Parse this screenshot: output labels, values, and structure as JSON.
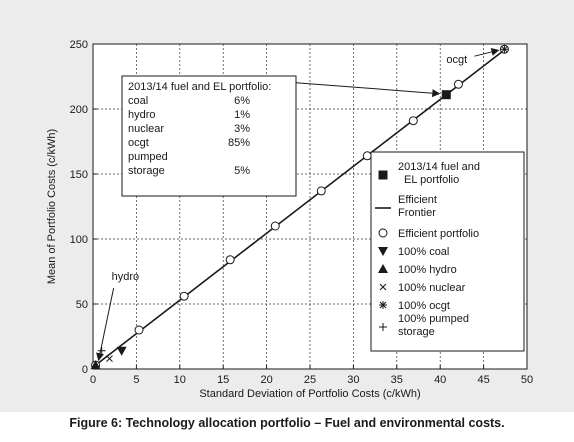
{
  "caption": "Figure 6: Technology allocation portfolio – Fuel and environmental costs.",
  "chart_data": {
    "type": "line",
    "title": "",
    "xlabel": "Standard Deviation of Portfolio Costs (c/kWh)",
    "ylabel": "Mean of Portfolio Costs (c/kWh)",
    "xlim": [
      0,
      50
    ],
    "ylim": [
      0,
      250
    ],
    "x_ticks": [
      "0",
      "5",
      "10",
      "15",
      "20",
      "25",
      "30",
      "35",
      "40",
      "45",
      "50"
    ],
    "y_ticks": [
      "0",
      "50",
      "100",
      "150",
      "200",
      "250"
    ],
    "grid": true,
    "legend_position": "bottom-right",
    "series": [
      {
        "name": "Efficient Frontier",
        "x": [
          0.3,
          47.5
        ],
        "y": [
          3,
          246
        ]
      },
      {
        "name": "Efficient portfolio",
        "x": [
          0.3,
          5.3,
          10.5,
          15.8,
          21.0,
          26.3,
          31.6,
          36.9,
          42.1,
          47.4
        ],
        "y": [
          3,
          30,
          56,
          84,
          110,
          137,
          164,
          191,
          219,
          246
        ]
      },
      {
        "name": "2013/14 fuel and EL portfolio",
        "x": [
          40.7
        ],
        "y": [
          211
        ]
      },
      {
        "name": "100% coal",
        "x": [
          3.3
        ],
        "y": [
          14
        ]
      },
      {
        "name": "100% hydro",
        "x": [
          0.3
        ],
        "y": [
          3
        ]
      },
      {
        "name": "100% nuclear",
        "x": [
          1.9
        ],
        "y": [
          8
        ]
      },
      {
        "name": "100% ocgt",
        "x": [
          47.4
        ],
        "y": [
          246
        ]
      },
      {
        "name": "100% pumped storage",
        "x": [
          1.0
        ],
        "y": [
          14
        ]
      }
    ],
    "legend": [
      "2013/14 fuel and EL portfolio",
      "Efficient Frontier",
      "Efficient portfolio",
      "100% coal",
      "100% hydro",
      "100% nuclear",
      "100% ocgt",
      "100% pumped storage"
    ],
    "annotations": {
      "hydro": "hydro",
      "ocgt": "ocgt",
      "portfolio_box": {
        "title": "2013/14 fuel and EL portfolio:",
        "rows": [
          {
            "label": "coal",
            "value": "6%"
          },
          {
            "label": "hydro",
            "value": "1%"
          },
          {
            "label": "nuclear",
            "value": "3%"
          },
          {
            "label": "ocgt",
            "value": "85%"
          },
          {
            "label": "pumped",
            "value": ""
          },
          {
            "label": "storage",
            "value": "5%"
          }
        ]
      }
    }
  }
}
